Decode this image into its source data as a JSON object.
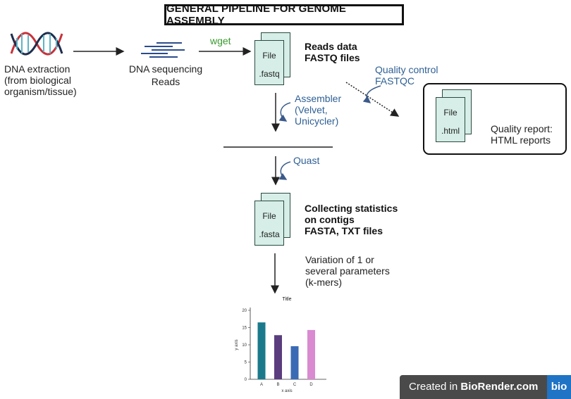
{
  "title": "GENERAL PIPELINE FOR GENOME ASSEMBLY",
  "dna_extraction": {
    "line1": "DNA extraction",
    "line2": "(from biological",
    "line3": "organism/tissue)"
  },
  "dna_sequencing": {
    "line1": "DNA sequencing",
    "line2": "Reads"
  },
  "wget_label": "wget",
  "reads_file": {
    "word": "File",
    "ext": ".fastq"
  },
  "reads_label": {
    "line1": "Reads data",
    "line2": "FASTQ files"
  },
  "quality_control": {
    "line1": "Quality control",
    "line2": "FASTQC"
  },
  "html_file": {
    "word": "File",
    "ext": ".html"
  },
  "quality_report": {
    "line1": "Quality report:",
    "line2": "HTML reports"
  },
  "assembler": {
    "line1": "Assembler",
    "line2": "(Velvet,",
    "line3": "Unicycler)"
  },
  "quast_label": "Quast",
  "fasta_file": {
    "word": "File",
    "ext": ".fasta"
  },
  "stats_label": {
    "line1": "Collecting statistics",
    "line2": "on contigs",
    "line3": "FASTA, TXT files"
  },
  "variation": {
    "line1": "Variation of 1 or",
    "line2": "several parameters",
    "line3": "(k-mers)"
  },
  "badge": {
    "prefix": "Created in ",
    "brand": "BioRender.com",
    "logo": "bio"
  },
  "colors": {
    "file_fill": "#d6eee7",
    "tool_blue": "#2e5f95",
    "wget_green": "#3a9a2e",
    "check_green": "#2f7d5a"
  },
  "icons": {
    "dna": "dna-helix-icon",
    "reads": "sequence-reads-icon",
    "check": "checkmark-icon"
  },
  "chart_data": {
    "type": "bar",
    "title": "Title",
    "xlabel": "x axis",
    "ylabel": "y axis",
    "categories": [
      "A",
      "B",
      "C",
      "D"
    ],
    "values": [
      16.5,
      12.8,
      9.6,
      14.3
    ],
    "colors": [
      "#1a7a8c",
      "#5a3d7e",
      "#3b6ab5",
      "#d98ad0"
    ],
    "ylim": [
      0,
      20
    ],
    "yticks": [
      0,
      5,
      10,
      15,
      20
    ],
    "grid": false
  }
}
